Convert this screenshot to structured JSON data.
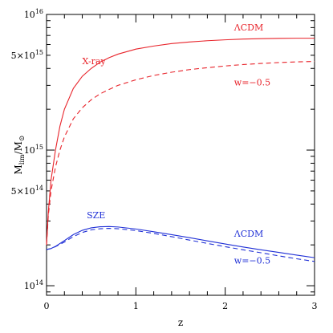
{
  "chart_data": {
    "type": "line",
    "xlabel": "z",
    "ylabel_main": "M",
    "ylabel_sub": "lim",
    "ylabel_suffix": "/M",
    "ylabel_sym": "⊙",
    "xlim": [
      0,
      3
    ],
    "ylim": [
      85000000000000.0,
      1e+16
    ],
    "yscale": "log",
    "x_ticks": [
      {
        "value": 0,
        "label": "0"
      },
      {
        "value": 1,
        "label": "1"
      },
      {
        "value": 2,
        "label": "2"
      },
      {
        "value": 3,
        "label": "3"
      }
    ],
    "y_ticks": [
      {
        "value": 100000000000000.0,
        "base": "10",
        "exp": "14"
      },
      {
        "value": 500000000000000.0,
        "base": "5×10",
        "exp": "14"
      },
      {
        "value": 1000000000000000.0,
        "base": "10",
        "exp": "15"
      },
      {
        "value": 5000000000000000.0,
        "base": "5×10",
        "exp": "15"
      },
      {
        "value": 1e+16,
        "base": "10",
        "exp": "16"
      }
    ],
    "series": [
      {
        "color": "#e8232a",
        "dash": "solid",
        "x": [
          0.0,
          0.02,
          0.05,
          0.1,
          0.15,
          0.2,
          0.3,
          0.4,
          0.5,
          0.6,
          0.7,
          0.8,
          1.0,
          1.2,
          1.4,
          1.6,
          1.8,
          2.0,
          2.2,
          2.4,
          2.6,
          2.8,
          3.0
        ],
        "y": [
          200000000000000.0,
          350000000000000.0,
          600000000000000.0,
          1000000000000000.0,
          1500000000000000.0,
          2000000000000000.0,
          2850000000000000.0,
          3500000000000000.0,
          4000000000000000.0,
          4450000000000000.0,
          4800000000000000.0,
          5100000000000000.0,
          5550000000000000.0,
          5850000000000000.0,
          6100000000000000.0,
          6270000000000000.0,
          6400000000000000.0,
          6500000000000000.0,
          6580000000000000.0,
          6630000000000000.0,
          6660000000000000.0,
          6680000000000000.0,
          6680000000000000.0
        ]
      },
      {
        "color": "#e8232a",
        "dash": "dashed",
        "x": [
          0.0,
          0.02,
          0.05,
          0.1,
          0.15,
          0.2,
          0.3,
          0.4,
          0.5,
          0.6,
          0.7,
          0.8,
          1.0,
          1.2,
          1.4,
          1.6,
          1.8,
          2.0,
          2.2,
          2.4,
          2.6,
          2.8,
          3.0
        ],
        "y": [
          200000000000000.0,
          330000000000000.0,
          500000000000000.0,
          750000000000000.0,
          1000000000000000.0,
          1250000000000000.0,
          1700000000000000.0,
          2050000000000000.0,
          2350000000000000.0,
          2600000000000000.0,
          2800000000000000.0,
          3000000000000000.0,
          3300000000000000.0,
          3550000000000000.0,
          3750000000000000.0,
          3920000000000000.0,
          4050000000000000.0,
          4170000000000000.0,
          4270000000000000.0,
          4350000000000000.0,
          4420000000000000.0,
          4470000000000000.0,
          4500000000000000.0
        ]
      },
      {
        "color": "#1f2fd6",
        "dash": "solid",
        "x": [
          0.0,
          0.05,
          0.1,
          0.2,
          0.3,
          0.4,
          0.5,
          0.6,
          0.7,
          0.8,
          1.0,
          1.2,
          1.4,
          1.6,
          1.8,
          2.0,
          2.2,
          2.4,
          2.6,
          2.8,
          3.0
        ],
        "y": [
          185000000000000.0,
          188000000000000.0,
          195000000000000.0,
          215000000000000.0,
          238000000000000.0,
          256000000000000.0,
          267000000000000.0,
          272000000000000.0,
          273000000000000.0,
          271000000000000.0,
          262000000000000.0,
          250000000000000.0,
          238000000000000.0,
          226000000000000.0,
          214000000000000.0,
          203000000000000.0,
          193000000000000.0,
          184000000000000.0,
          176000000000000.0,
          168000000000000.0,
          161000000000000.0
        ]
      },
      {
        "color": "#1f2fd6",
        "dash": "dashed",
        "x": [
          0.0,
          0.05,
          0.1,
          0.2,
          0.3,
          0.4,
          0.5,
          0.6,
          0.7,
          0.8,
          1.0,
          1.2,
          1.4,
          1.6,
          1.8,
          2.0,
          2.2,
          2.4,
          2.6,
          2.8,
          3.0
        ],
        "y": [
          185000000000000.0,
          188000000000000.0,
          194000000000000.0,
          210000000000000.0,
          230000000000000.0,
          247000000000000.0,
          258000000000000.0,
          263000000000000.0,
          265000000000000.0,
          263000000000000.0,
          255000000000000.0,
          243000000000000.0,
          230000000000000.0,
          217000000000000.0,
          205000000000000.0,
          194000000000000.0,
          184000000000000.0,
          175000000000000.0,
          166000000000000.0,
          158000000000000.0,
          151000000000000.0
        ]
      }
    ],
    "annotations": [
      {
        "text": "ΛCDM",
        "color": "#e8232a",
        "x": 2.1,
        "y": 7600000000000000.0
      },
      {
        "text": "X-ray",
        "color": "#e8232a",
        "x": 0.4,
        "y": 4300000000000000.0
      },
      {
        "text": "w=−0.5",
        "color": "#e8232a",
        "x": 2.1,
        "y": 3000000000000000.0
      },
      {
        "text": "SZE",
        "color": "#1f2fd6",
        "x": 0.45,
        "y": 315000000000000.0
      },
      {
        "text": "ΛCDM",
        "color": "#1f2fd6",
        "x": 2.1,
        "y": 230000000000000.0
      },
      {
        "text": "w=−0.5",
        "color": "#1f2fd6",
        "x": 2.1,
        "y": 146000000000000.0
      }
    ]
  }
}
